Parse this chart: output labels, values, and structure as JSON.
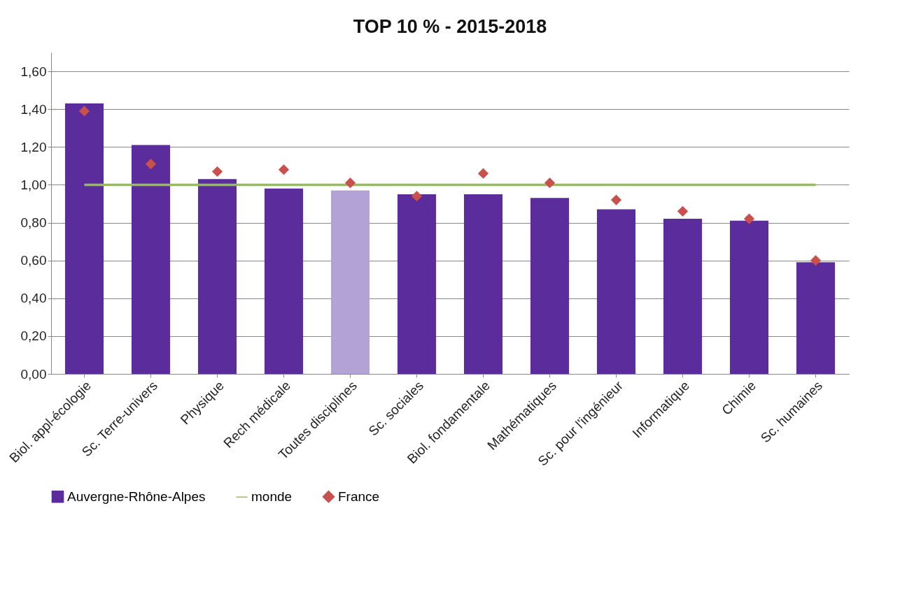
{
  "chart_data": {
    "type": "bar",
    "title": "TOP 10 % - 2015-2018",
    "categories": [
      "Biol. appl-écologie",
      "Sc. Terre-univers",
      "Physique",
      "Rech médicale",
      "Toutes disciplines",
      "Sc. sociales",
      "Biol. fondamentale",
      "Mathématiques",
      "Sc. pour l'ingénieur",
      "Informatique",
      "Chimie",
      "Sc. humaines"
    ],
    "series": [
      {
        "name": "Auvergne-Rhône-Alpes",
        "color": "#5b2c9c",
        "colors": [
          "#5b2c9c",
          "#5b2c9c",
          "#5b2c9c",
          "#5b2c9c",
          "#b3a2d6",
          "#5b2c9c",
          "#5b2c9c",
          "#5b2c9c",
          "#5b2c9c",
          "#5b2c9c",
          "#5b2c9c",
          "#5b2c9c"
        ],
        "values": [
          1.43,
          1.21,
          1.03,
          0.98,
          0.97,
          0.95,
          0.95,
          0.93,
          0.87,
          0.82,
          0.81,
          0.59
        ]
      },
      {
        "name": "monde",
        "type": "line",
        "color": "#92c050",
        "values": [
          1.0,
          1.0,
          1.0,
          1.0,
          1.0,
          1.0,
          1.0,
          1.0,
          1.0,
          1.0,
          1.0,
          1.0
        ]
      },
      {
        "name": "France",
        "type": "scatter",
        "color": "#c8504d",
        "marker": "diamond",
        "values": [
          1.39,
          1.11,
          1.07,
          1.08,
          1.01,
          0.94,
          1.06,
          1.01,
          0.92,
          0.86,
          0.82,
          0.6
        ]
      }
    ],
    "ylim": [
      0,
      1.7
    ],
    "yticks": [
      {
        "value": 0,
        "label": "0,00"
      },
      {
        "value": 0.2,
        "label": "0,20"
      },
      {
        "value": 0.4,
        "label": "0,40"
      },
      {
        "value": 0.6,
        "label": "0,60"
      },
      {
        "value": 0.8,
        "label": "0,80"
      },
      {
        "value": 1.0,
        "label": "1,00"
      },
      {
        "value": 1.2,
        "label": "1,20"
      },
      {
        "value": 1.4,
        "label": "1,40"
      },
      {
        "value": 1.6,
        "label": "1,60"
      }
    ],
    "grid": "y",
    "legend": "bottom"
  }
}
